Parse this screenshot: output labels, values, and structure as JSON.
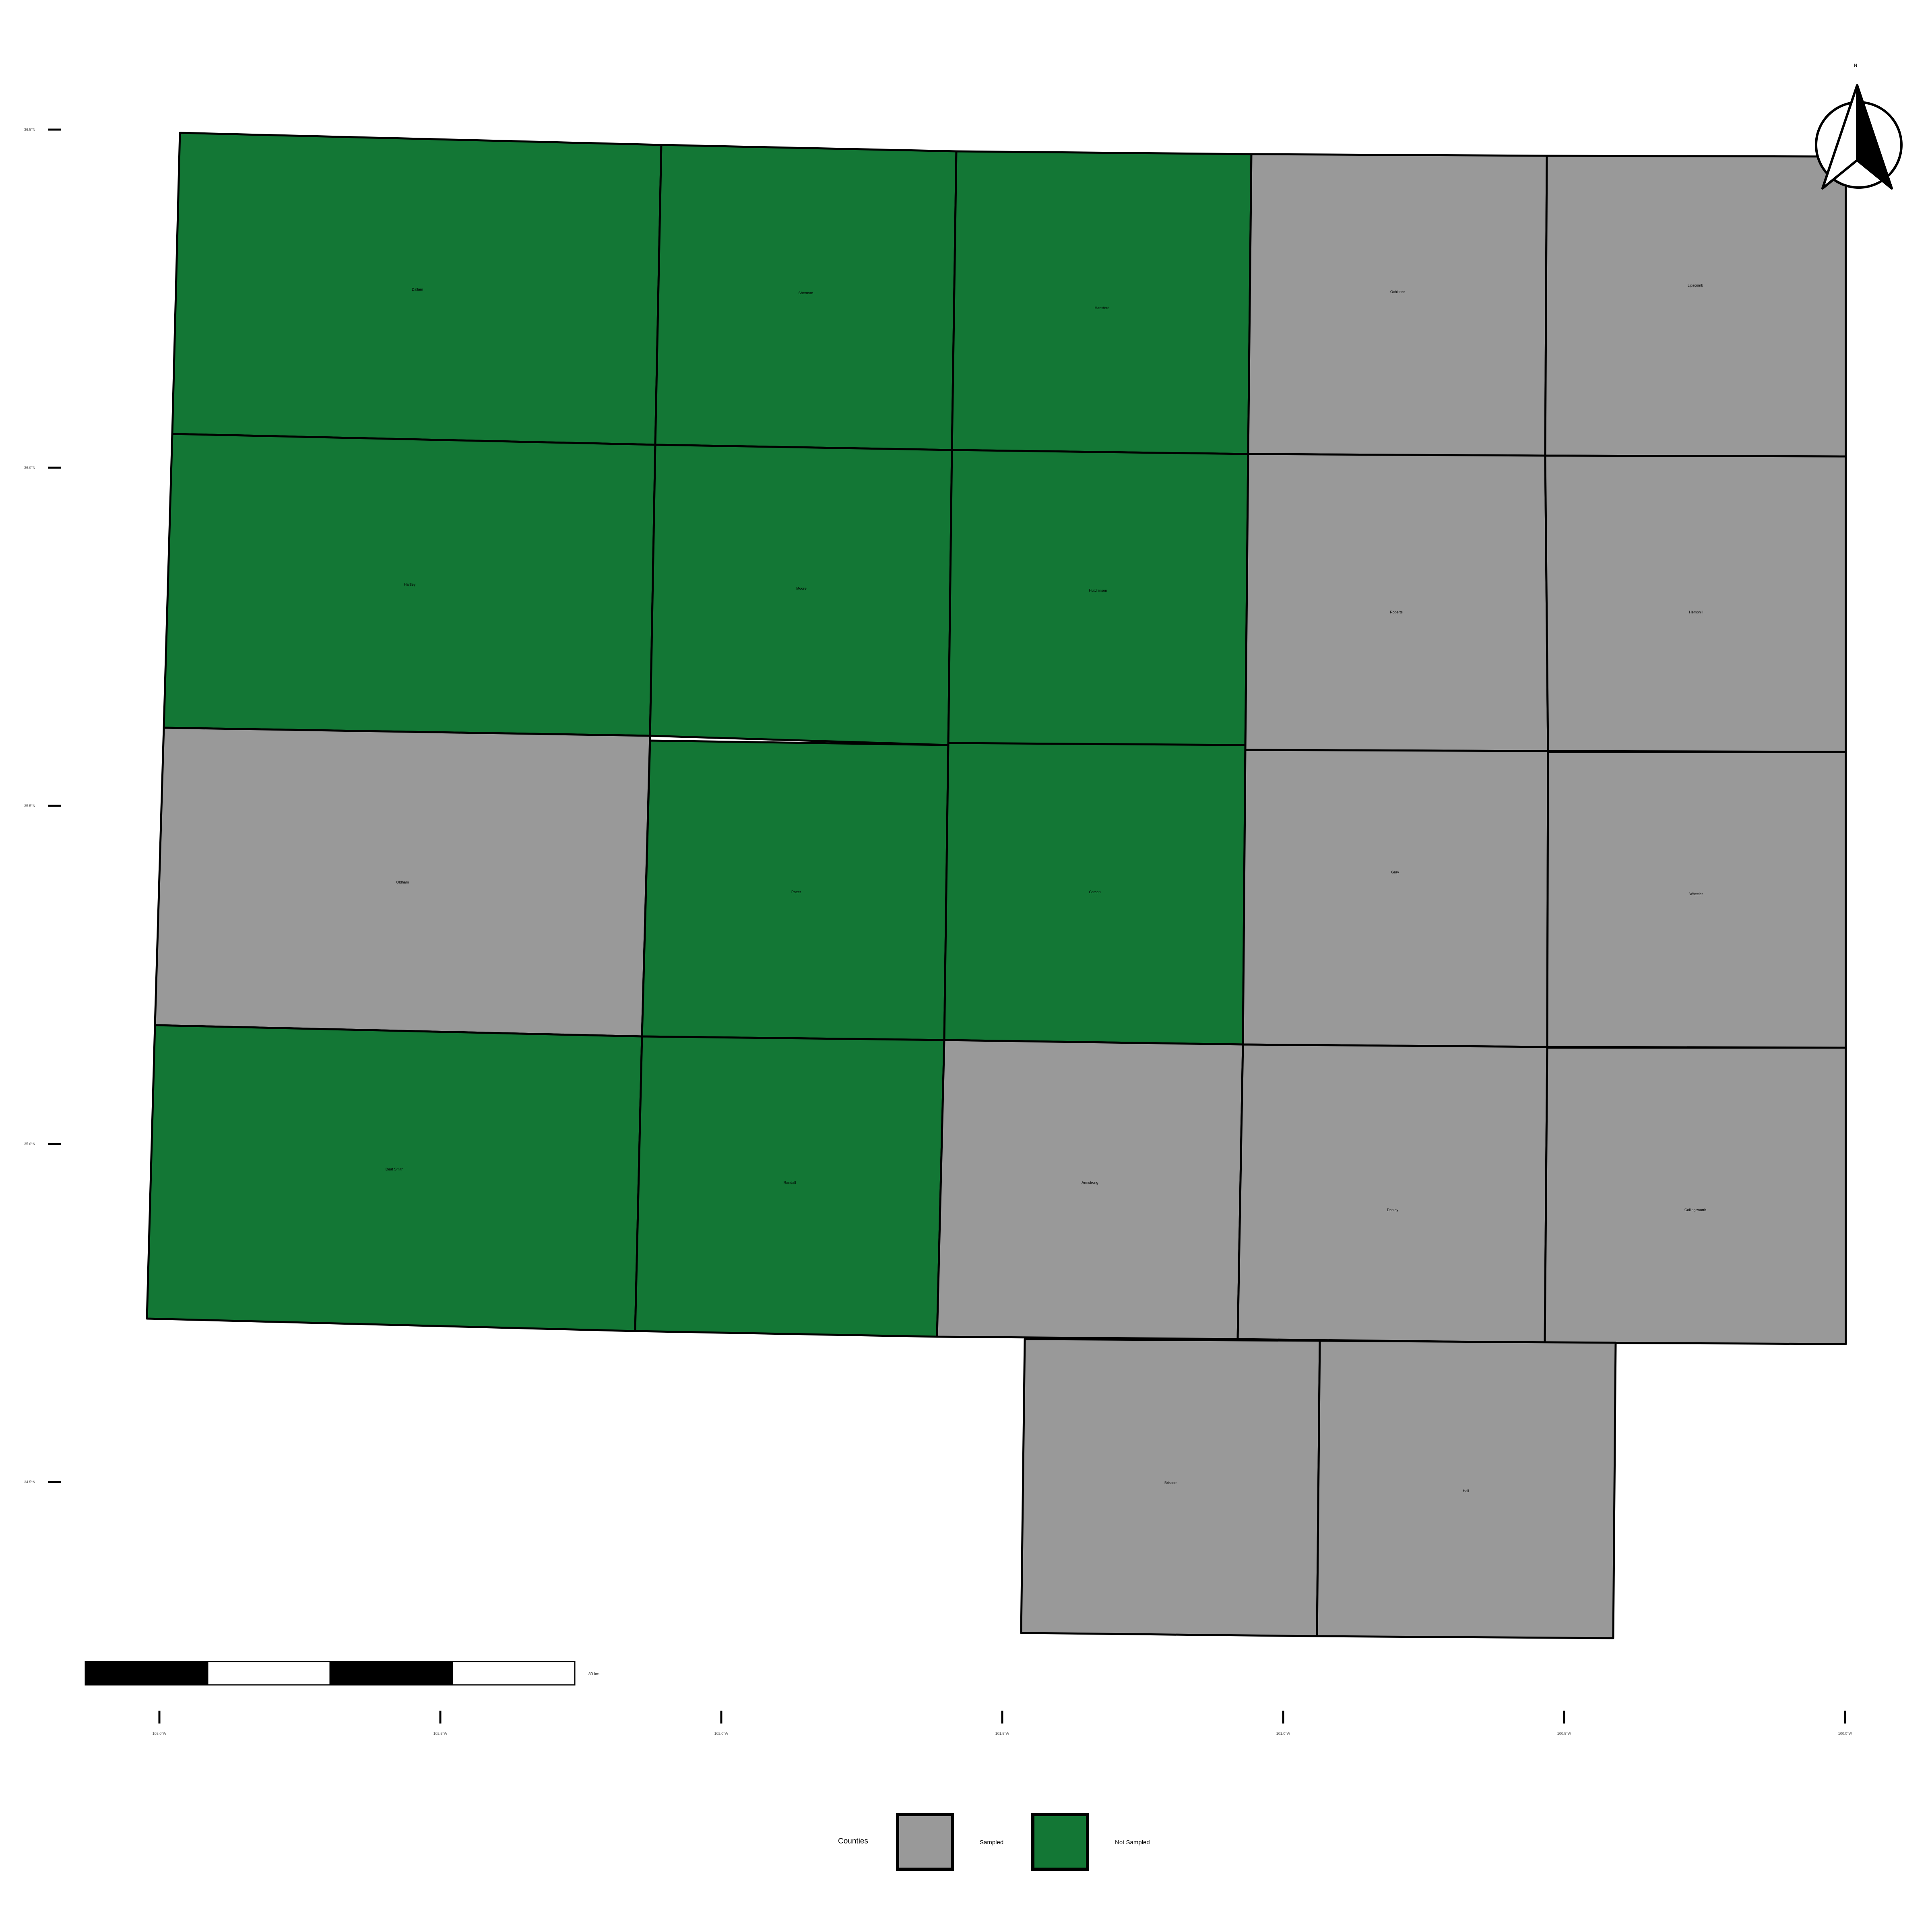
{
  "colors": {
    "sampled": "#999999",
    "not_sampled": "#137735"
  },
  "counties": [
    {
      "id": "dallam",
      "name": "Dallam",
      "status": "not_sampled"
    },
    {
      "id": "sherman",
      "name": "Sherman",
      "status": "not_sampled"
    },
    {
      "id": "hansford",
      "name": "Hansford",
      "status": "not_sampled"
    },
    {
      "id": "ochiltree",
      "name": "Ochiltree",
      "status": "sampled"
    },
    {
      "id": "lipscomb",
      "name": "Lipscomb",
      "status": "sampled"
    },
    {
      "id": "hartley",
      "name": "Hartley",
      "status": "not_sampled"
    },
    {
      "id": "moore",
      "name": "Moore",
      "status": "not_sampled"
    },
    {
      "id": "hutchinson",
      "name": "Hutchinson",
      "status": "not_sampled"
    },
    {
      "id": "roberts",
      "name": "Roberts",
      "status": "sampled"
    },
    {
      "id": "hemphill",
      "name": "Hemphill",
      "status": "sampled"
    },
    {
      "id": "oldham",
      "name": "Oldham",
      "status": "sampled"
    },
    {
      "id": "potter",
      "name": "Potter",
      "status": "not_sampled"
    },
    {
      "id": "carson",
      "name": "Carson",
      "status": "not_sampled"
    },
    {
      "id": "gray",
      "name": "Gray",
      "status": "sampled"
    },
    {
      "id": "wheeler",
      "name": "Wheeler",
      "status": "sampled"
    },
    {
      "id": "deaf-smith",
      "name": "Deaf Smith",
      "status": "not_sampled"
    },
    {
      "id": "randall",
      "name": "Randall",
      "status": "not_sampled"
    },
    {
      "id": "armstrong",
      "name": "Armstrong",
      "status": "sampled"
    },
    {
      "id": "donley",
      "name": "Donley",
      "status": "sampled"
    },
    {
      "id": "collingsworth",
      "name": "Collingsworth",
      "status": "sampled"
    },
    {
      "id": "briscoe",
      "name": "Briscoe",
      "status": "sampled"
    },
    {
      "id": "hall",
      "name": "Hall",
      "status": "sampled"
    }
  ],
  "lat_labels": [
    "36.5°N",
    "36.0°N",
    "35.5°N",
    "35.0°N",
    "34.5°N"
  ],
  "lon_labels": [
    "103.0°W",
    "102.5°W",
    "102.0°W",
    "101.5°W",
    "101.0°W",
    "100.5°W",
    "100.0°W"
  ],
  "scale_bar": {
    "label": "80 km"
  },
  "north_arrow": {
    "label": "N"
  },
  "legend": {
    "title": "Counties",
    "items": [
      {
        "label": "Sampled",
        "status": "sampled"
      },
      {
        "label": "Not Sampled",
        "status": "not_sampled"
      }
    ]
  }
}
